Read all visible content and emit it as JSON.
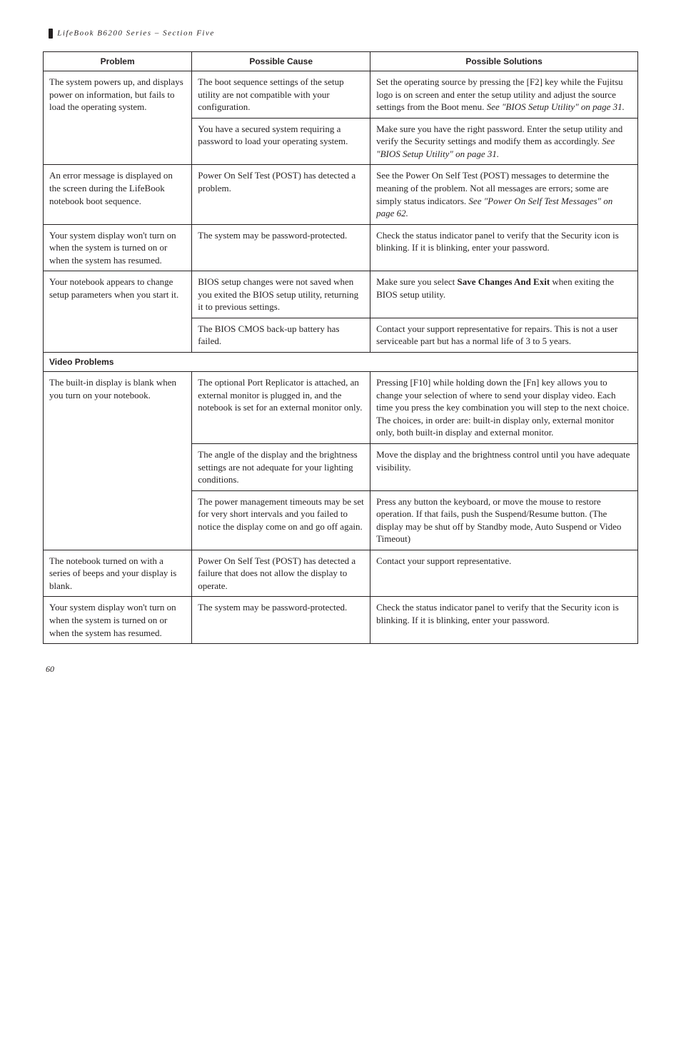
{
  "running_head": "LifeBook B6200 Series – Section Five",
  "headers": {
    "problem": "Problem",
    "cause": "Possible Cause",
    "solutions": "Possible Solutions"
  },
  "section_label": "Video Problems",
  "page_number": "60",
  "rows": [
    {
      "problem": "The system powers up, and displays power on information, but fails to load the operating system.",
      "cause": "The boot sequence settings of the setup utility are not compatible with your configuration.",
      "solution_plain": "Set the operating source by pressing the [F2] key while the Fujitsu logo is on screen and enter the setup utility and adjust the source settings from the Boot menu. ",
      "solution_italic": "See \"BIOS Setup Utility\" on page 31."
    },
    {
      "problem": "",
      "cause": "You have a secured system requiring a password to load your operating system.",
      "solution_plain": "Make sure you have the right password. Enter the setup utility and verify the Security settings and modify them as accordingly. ",
      "solution_italic": "See \"BIOS Setup Utility\" on page 31."
    },
    {
      "problem": "An error message is displayed on the screen during the LifeBook notebook boot sequence.",
      "cause": "Power On Self Test (POST) has detected a problem.",
      "solution_plain": "See the Power On Self Test (POST) messages to determine the meaning of the problem. Not all messages are errors; some are simply status indicators. ",
      "solution_italic": "See \"Power On Self Test Messages\" on page 62."
    },
    {
      "problem": "Your system display won't turn on when the system is turned on or when the system has resumed.",
      "cause": "The system may be password-protected.",
      "solution_plain": "Check the status indicator panel to verify that the Security icon is blinking. If it is blinking, enter your password.",
      "solution_italic": ""
    },
    {
      "problem": "Your notebook appears to change setup parameters when you start it.",
      "cause": "BIOS setup changes were not saved when you exited the BIOS setup utility, returning it to previous settings.",
      "solution_plain_prefix": "Make sure you select ",
      "solution_bold": "Save Changes And Exit",
      "solution_plain_suffix": " when exiting the BIOS setup utility.",
      "solution_italic": ""
    },
    {
      "problem": "",
      "cause": "The BIOS CMOS back-up battery has failed.",
      "solution_plain": "Contact your support representative for repairs. This is not a user serviceable part but has a normal life of 3 to 5 years.",
      "solution_italic": ""
    },
    {
      "problem": "The built-in display is blank when you turn on your notebook.",
      "cause": "The optional Port Replicator is attached, an external monitor is plugged in, and the notebook is set for an external monitor only.",
      "solution_plain": "Pressing [F10] while holding down the [Fn] key allows you to change your selection of where to send your display video. Each time you press the key combination you will step to the next choice. The choices, in order are: built-in display only, external monitor only, both built-in display and external monitor.",
      "solution_italic": ""
    },
    {
      "problem": "",
      "cause": "The angle of the display and the brightness settings are not adequate for your lighting conditions.",
      "solution_plain": "Move the display and the brightness control until you have adequate visibility.",
      "solution_italic": ""
    },
    {
      "problem": "",
      "cause": "The power management timeouts may be set for very short intervals and you failed to notice the display come on and go off again.",
      "solution_plain": "Press any button the keyboard, or move the mouse to restore operation. If that fails, push the Suspend/Resume button. (The display may be shut off by Standby mode, Auto Suspend or Video Timeout)",
      "solution_italic": ""
    },
    {
      "problem": "The notebook turned on with a series of beeps and your display is blank.",
      "cause": "Power On Self Test (POST) has detected a failure that does not allow the display to operate.",
      "solution_plain": " Contact your support representative.",
      "solution_italic": ""
    },
    {
      "problem": "Your system display won't turn on when the system is turned on or when the system has resumed.",
      "cause": "The system may be password-protected.",
      "solution_plain": "Check the status indicator panel to verify that the Security icon is blinking. If it is blinking, enter your password.",
      "solution_italic": ""
    }
  ]
}
